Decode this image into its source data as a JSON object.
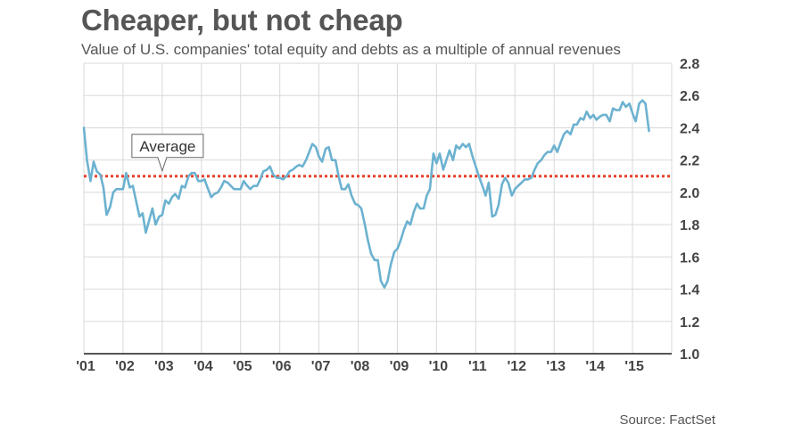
{
  "chart_data": {
    "type": "line",
    "title": "Cheaper, but not cheap",
    "subtitle": "Value of U.S. companies' total equity and debts as a multiple of annual revenues",
    "source": "Source: FactSet",
    "xlabel": "",
    "ylabel": "",
    "ylim": [
      1.0,
      2.8
    ],
    "yticks": [
      "2.8",
      "2.6",
      "2.4",
      "2.2",
      "2.0",
      "1.8",
      "1.6",
      "1.4",
      "1.2",
      "1.0"
    ],
    "ytick_values": [
      2.8,
      2.6,
      2.4,
      2.2,
      2.0,
      1.8,
      1.6,
      1.4,
      1.2,
      1.0
    ],
    "xlim": [
      2001.0,
      2016.0
    ],
    "xticks": [
      "'01",
      "'02",
      "'03",
      "'04",
      "'05",
      "'06",
      "'07",
      "'08",
      "'09",
      "'10",
      "'11",
      "'12",
      "'13",
      "'14",
      "'15"
    ],
    "xtick_values": [
      2001,
      2002,
      2003,
      2004,
      2005,
      2006,
      2007,
      2008,
      2009,
      2010,
      2011,
      2012,
      2013,
      2014,
      2015
    ],
    "grid": true,
    "y_axis_side": "right",
    "series": [
      {
        "color": "#6cb2d0",
        "points": [
          [
            2001.0,
            2.4
          ],
          [
            2001.08,
            2.2
          ],
          [
            2001.17,
            2.07
          ],
          [
            2001.25,
            2.19
          ],
          [
            2001.33,
            2.13
          ],
          [
            2001.42,
            2.11
          ],
          [
            2001.5,
            2.03
          ],
          [
            2001.58,
            1.86
          ],
          [
            2001.67,
            1.91
          ],
          [
            2001.75,
            2.0
          ],
          [
            2001.83,
            2.02
          ],
          [
            2001.92,
            2.02
          ],
          [
            2002.0,
            2.02
          ],
          [
            2002.08,
            2.12
          ],
          [
            2002.17,
            2.03
          ],
          [
            2002.25,
            2.04
          ],
          [
            2002.33,
            1.95
          ],
          [
            2002.42,
            1.85
          ],
          [
            2002.5,
            1.87
          ],
          [
            2002.58,
            1.75
          ],
          [
            2002.67,
            1.83
          ],
          [
            2002.75,
            1.9
          ],
          [
            2002.83,
            1.8
          ],
          [
            2002.92,
            1.85
          ],
          [
            2003.0,
            1.86
          ],
          [
            2003.08,
            1.95
          ],
          [
            2003.17,
            1.93
          ],
          [
            2003.25,
            1.97
          ],
          [
            2003.33,
            1.99
          ],
          [
            2003.42,
            1.96
          ],
          [
            2003.5,
            2.04
          ],
          [
            2003.58,
            2.03
          ],
          [
            2003.67,
            2.1
          ],
          [
            2003.75,
            2.12
          ],
          [
            2003.83,
            2.12
          ],
          [
            2003.92,
            2.07
          ],
          [
            2004.0,
            2.07
          ],
          [
            2004.08,
            2.08
          ],
          [
            2004.17,
            2.02
          ],
          [
            2004.25,
            1.97
          ],
          [
            2004.33,
            1.99
          ],
          [
            2004.42,
            2.0
          ],
          [
            2004.5,
            2.03
          ],
          [
            2004.58,
            2.07
          ],
          [
            2004.67,
            2.06
          ],
          [
            2004.75,
            2.04
          ],
          [
            2004.83,
            2.02
          ],
          [
            2004.92,
            2.02
          ],
          [
            2005.0,
            2.02
          ],
          [
            2005.08,
            2.07
          ],
          [
            2005.17,
            2.04
          ],
          [
            2005.25,
            2.02
          ],
          [
            2005.33,
            2.04
          ],
          [
            2005.42,
            2.04
          ],
          [
            2005.5,
            2.08
          ],
          [
            2005.58,
            2.13
          ],
          [
            2005.67,
            2.14
          ],
          [
            2005.75,
            2.16
          ],
          [
            2005.83,
            2.11
          ],
          [
            2005.92,
            2.09
          ],
          [
            2006.0,
            2.09
          ],
          [
            2006.08,
            2.08
          ],
          [
            2006.17,
            2.1
          ],
          [
            2006.25,
            2.13
          ],
          [
            2006.33,
            2.14
          ],
          [
            2006.42,
            2.16
          ],
          [
            2006.5,
            2.17
          ],
          [
            2006.58,
            2.16
          ],
          [
            2006.67,
            2.2
          ],
          [
            2006.75,
            2.25
          ],
          [
            2006.83,
            2.3
          ],
          [
            2006.92,
            2.28
          ],
          [
            2007.0,
            2.22
          ],
          [
            2007.08,
            2.19
          ],
          [
            2007.17,
            2.27
          ],
          [
            2007.25,
            2.28
          ],
          [
            2007.33,
            2.2
          ],
          [
            2007.42,
            2.2
          ],
          [
            2007.5,
            2.1
          ],
          [
            2007.58,
            2.02
          ],
          [
            2007.67,
            2.02
          ],
          [
            2007.75,
            2.05
          ],
          [
            2007.83,
            1.98
          ],
          [
            2007.92,
            1.93
          ],
          [
            2008.0,
            1.92
          ],
          [
            2008.08,
            1.9
          ],
          [
            2008.17,
            1.8
          ],
          [
            2008.25,
            1.7
          ],
          [
            2008.33,
            1.62
          ],
          [
            2008.42,
            1.58
          ],
          [
            2008.5,
            1.58
          ],
          [
            2008.58,
            1.45
          ],
          [
            2008.67,
            1.41
          ],
          [
            2008.75,
            1.45
          ],
          [
            2008.83,
            1.55
          ],
          [
            2008.92,
            1.63
          ],
          [
            2009.0,
            1.65
          ],
          [
            2009.08,
            1.7
          ],
          [
            2009.17,
            1.77
          ],
          [
            2009.25,
            1.82
          ],
          [
            2009.33,
            1.8
          ],
          [
            2009.42,
            1.88
          ],
          [
            2009.5,
            1.93
          ],
          [
            2009.58,
            1.9
          ],
          [
            2009.67,
            1.9
          ],
          [
            2009.75,
            1.98
          ],
          [
            2009.83,
            2.02
          ],
          [
            2009.92,
            2.24
          ],
          [
            2010.0,
            2.18
          ],
          [
            2010.08,
            2.24
          ],
          [
            2010.17,
            2.14
          ],
          [
            2010.25,
            2.2
          ],
          [
            2010.33,
            2.26
          ],
          [
            2010.42,
            2.2
          ],
          [
            2010.5,
            2.29
          ],
          [
            2010.58,
            2.27
          ],
          [
            2010.67,
            2.3
          ],
          [
            2010.75,
            2.28
          ],
          [
            2010.83,
            2.3
          ],
          [
            2010.92,
            2.22
          ],
          [
            2011.0,
            2.16
          ],
          [
            2011.08,
            2.1
          ],
          [
            2011.17,
            2.04
          ],
          [
            2011.25,
            1.98
          ],
          [
            2011.33,
            2.06
          ],
          [
            2011.42,
            1.85
          ],
          [
            2011.5,
            1.86
          ],
          [
            2011.58,
            1.92
          ],
          [
            2011.67,
            2.05
          ],
          [
            2011.75,
            2.09
          ],
          [
            2011.83,
            2.06
          ],
          [
            2011.92,
            1.98
          ],
          [
            2012.0,
            2.02
          ],
          [
            2012.08,
            2.04
          ],
          [
            2012.17,
            2.06
          ],
          [
            2012.25,
            2.08
          ],
          [
            2012.33,
            2.08
          ],
          [
            2012.42,
            2.09
          ],
          [
            2012.5,
            2.14
          ],
          [
            2012.58,
            2.18
          ],
          [
            2012.67,
            2.2
          ],
          [
            2012.75,
            2.23
          ],
          [
            2012.83,
            2.25
          ],
          [
            2012.92,
            2.25
          ],
          [
            2013.0,
            2.29
          ],
          [
            2013.08,
            2.25
          ],
          [
            2013.17,
            2.31
          ],
          [
            2013.25,
            2.36
          ],
          [
            2013.33,
            2.38
          ],
          [
            2013.42,
            2.36
          ],
          [
            2013.5,
            2.42
          ],
          [
            2013.58,
            2.42
          ],
          [
            2013.67,
            2.46
          ],
          [
            2013.75,
            2.45
          ],
          [
            2013.83,
            2.5
          ],
          [
            2013.92,
            2.46
          ],
          [
            2014.0,
            2.48
          ],
          [
            2014.08,
            2.45
          ],
          [
            2014.17,
            2.47
          ],
          [
            2014.25,
            2.48
          ],
          [
            2014.33,
            2.48
          ],
          [
            2014.42,
            2.44
          ],
          [
            2014.5,
            2.52
          ],
          [
            2014.58,
            2.51
          ],
          [
            2014.67,
            2.51
          ],
          [
            2014.75,
            2.56
          ],
          [
            2014.83,
            2.53
          ],
          [
            2014.92,
            2.55
          ],
          [
            2015.0,
            2.49
          ],
          [
            2015.08,
            2.44
          ],
          [
            2015.17,
            2.55
          ],
          [
            2015.25,
            2.57
          ],
          [
            2015.33,
            2.55
          ],
          [
            2015.42,
            2.38
          ]
        ]
      }
    ],
    "reference_line": {
      "label": "Average",
      "value": 2.1,
      "color": "#e8402a",
      "label_x": 2003.0
    }
  }
}
